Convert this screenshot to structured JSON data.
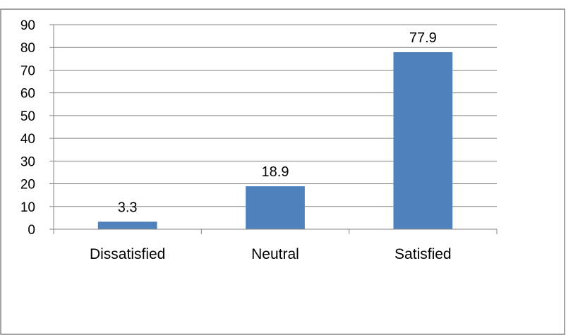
{
  "chart_data": {
    "type": "bar",
    "categories": [
      "Dissatisfied",
      "Neutral",
      "Satisfied"
    ],
    "values": [
      3.3,
      18.9,
      77.9
    ],
    "data_labels": [
      "3.3",
      "18.9",
      "77.9"
    ],
    "title": "",
    "xlabel": "",
    "ylabel": "",
    "ylim": [
      0,
      90
    ],
    "yticks": [
      0,
      10,
      20,
      30,
      40,
      50,
      60,
      70,
      80,
      90
    ],
    "ytick_labels": [
      "0",
      "10",
      "20",
      "30",
      "40",
      "50",
      "60",
      "70",
      "80",
      "90"
    ],
    "grid": true,
    "legend": "none",
    "colors": {
      "bar": "#4F81BD",
      "gridline": "#868686",
      "axis": "#868686",
      "border": "#868686"
    }
  }
}
